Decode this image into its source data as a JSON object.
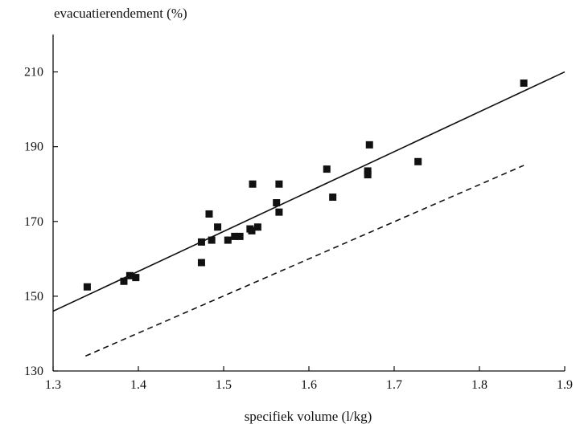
{
  "chart_data": {
    "type": "scatter",
    "title": "",
    "ylabel": "evacuatierendement (%)",
    "xlabel": "specifiek volume (l/kg)",
    "xlim": [
      1.3,
      1.9
    ],
    "ylim": [
      130,
      220
    ],
    "x_ticks": [
      1.3,
      1.4,
      1.5,
      1.6,
      1.7,
      1.8,
      1.9
    ],
    "x_tick_labels": [
      "1.3",
      "1.4",
      "1.5",
      "1.6",
      "1.7",
      "1.8",
      "1.9"
    ],
    "y_ticks": [
      130,
      150,
      170,
      190,
      210
    ],
    "y_tick_labels": [
      "130",
      "150",
      "170",
      "190",
      "210"
    ],
    "grid": false,
    "series": [
      {
        "type": "scatter",
        "marker": "square",
        "x": [
          1.34,
          1.383,
          1.39,
          1.397,
          1.474,
          1.474,
          1.483,
          1.486,
          1.493,
          1.505,
          1.513,
          1.519,
          1.531,
          1.533,
          1.534,
          1.54,
          1.562,
          1.565,
          1.565,
          1.621,
          1.628,
          1.669,
          1.669,
          1.671,
          1.728,
          1.852
        ],
        "y": [
          152.5,
          154,
          155.5,
          155,
          159,
          164.5,
          172,
          165,
          168.5,
          165,
          166,
          166,
          168,
          167.5,
          180,
          168.5,
          175,
          172.5,
          180,
          184,
          176.5,
          182.5,
          183.5,
          190.5,
          186,
          207
        ]
      },
      {
        "type": "line",
        "style": "solid",
        "x": [
          1.3,
          1.9
        ],
        "y": [
          146,
          210
        ]
      },
      {
        "type": "line",
        "style": "dashed",
        "x": [
          1.338,
          1.852
        ],
        "y": [
          134,
          185
        ]
      }
    ]
  }
}
